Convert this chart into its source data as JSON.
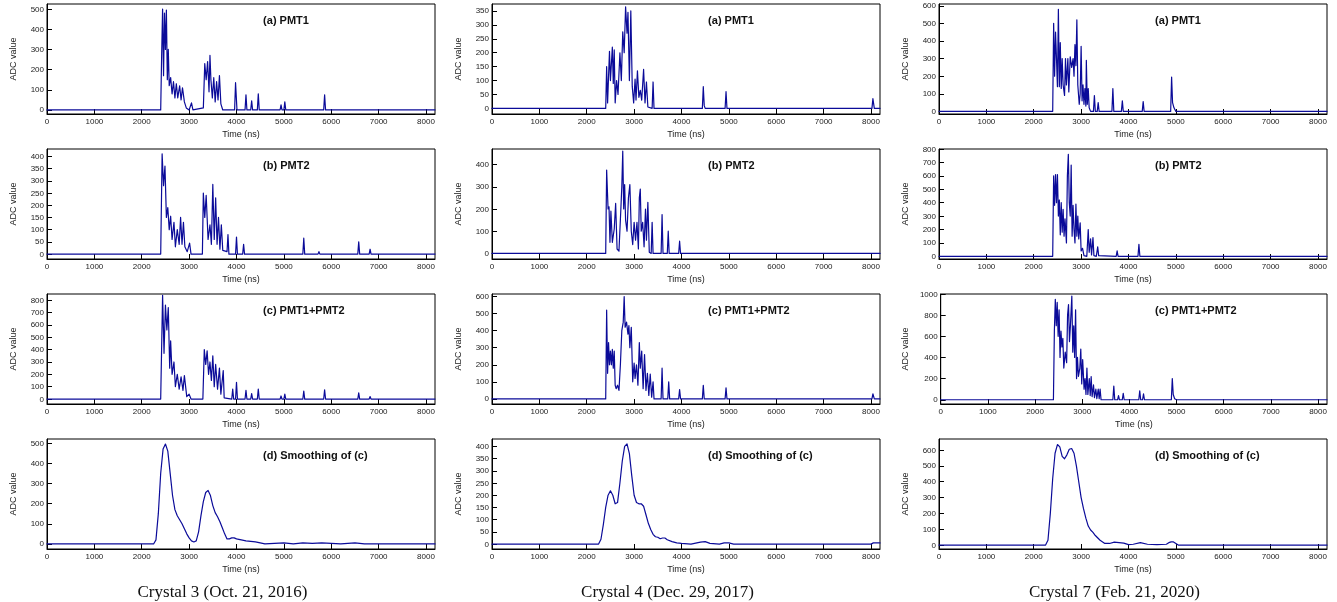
{
  "chart_data": [
    {
      "type": "line",
      "title": "(a) PMT1",
      "xlabel": "Time (ns)",
      "ylabel": "ADC value",
      "xlim": [
        0,
        8190
      ],
      "xticks": [
        0,
        1000,
        2000,
        3000,
        4000,
        5000,
        6000,
        7000,
        8000
      ],
      "ylim": [
        -20,
        525
      ],
      "yticks": [
        0,
        100,
        200,
        300,
        400,
        500
      ],
      "x": [
        0,
        2400,
        2420,
        2440,
        2460,
        2480,
        2500,
        2520,
        2540,
        2560,
        2580,
        2610,
        2640,
        2670,
        2700,
        2730,
        2760,
        2800,
        2830,
        2860,
        2900,
        2940,
        3000,
        3050,
        3080,
        3300,
        3330,
        3360,
        3390,
        3420,
        3440,
        3460,
        3490,
        3520,
        3550,
        3580,
        3610,
        3640,
        3670,
        3710,
        3960,
        3980,
        4010,
        4180,
        4200,
        4220,
        4300,
        4320,
        4340,
        4440,
        4460,
        4480,
        4920,
        4940,
        4960,
        5000,
        5020,
        5040,
        5840,
        5860,
        5880,
        8190
      ],
      "series": [
        {
          "color": "#0b0b99",
          "values": [
            0,
            0,
            270,
            500,
            170,
            480,
            300,
            495,
            150,
            300,
            120,
            160,
            80,
            140,
            60,
            130,
            60,
            120,
            50,
            110,
            40,
            10,
            0,
            35,
            0,
            10,
            230,
            150,
            240,
            90,
            270,
            150,
            60,
            160,
            40,
            140,
            50,
            170,
            30,
            0,
            0,
            135,
            0,
            0,
            75,
            0,
            0,
            45,
            0,
            0,
            80,
            0,
            0,
            25,
            0,
            0,
            40,
            0,
            0,
            75,
            0,
            0
          ]
        }
      ]
    },
    {
      "type": "line",
      "title": "(a) PMT1",
      "xlabel": "Time (ns)",
      "ylabel": "ADC value",
      "xlim": [
        0,
        8190
      ],
      "xticks": [
        0,
        1000,
        2000,
        3000,
        4000,
        5000,
        6000,
        7000,
        8000
      ],
      "ylim": [
        -20,
        375
      ],
      "yticks": [
        0,
        50,
        100,
        150,
        200,
        250,
        300,
        350
      ],
      "x": [
        0,
        2400,
        2420,
        2440,
        2480,
        2500,
        2540,
        2560,
        2580,
        2600,
        2630,
        2660,
        2700,
        2730,
        2760,
        2790,
        2820,
        2850,
        2870,
        2900,
        2930,
        2960,
        2990,
        3020,
        3040,
        3070,
        3100,
        3130,
        3160,
        3200,
        3230,
        3260,
        3290,
        3380,
        3400,
        3420,
        4440,
        4460,
        4480,
        4500,
        4920,
        4940,
        4960,
        8020,
        8040,
        8070,
        8190
      ],
      "series": [
        {
          "color": "#0b0b99",
          "values": [
            0,
            0,
            150,
            20,
            205,
            100,
            220,
            90,
            210,
            20,
            100,
            50,
            200,
            100,
            275,
            200,
            365,
            270,
            345,
            100,
            350,
            80,
            20,
            105,
            30,
            135,
            40,
            65,
            30,
            140,
            20,
            95,
            5,
            0,
            95,
            0,
            0,
            78,
            10,
            0,
            0,
            60,
            0,
            0,
            35,
            0,
            0
          ]
        }
      ]
    },
    {
      "type": "line",
      "title": "(a) PMT1",
      "xlabel": "Time (ns)",
      "ylabel": "ADC value",
      "xlim": [
        0,
        8190
      ],
      "xticks": [
        0,
        1000,
        2000,
        3000,
        4000,
        5000,
        6000,
        7000,
        8000
      ],
      "ylim": [
        -15,
        610
      ],
      "yticks": [
        0,
        100,
        200,
        300,
        400,
        500,
        600
      ],
      "x": [
        0,
        2400,
        2420,
        2440,
        2460,
        2480,
        2500,
        2520,
        2540,
        2560,
        2580,
        2600,
        2620,
        2650,
        2670,
        2690,
        2720,
        2740,
        2770,
        2800,
        2830,
        2850,
        2870,
        2890,
        2910,
        2930,
        2960,
        2980,
        3000,
        3020,
        3040,
        3060,
        3080,
        3100,
        3110,
        3130,
        3150,
        3170,
        3200,
        3260,
        3280,
        3300,
        3340,
        3360,
        3380,
        3650,
        3670,
        3690,
        3850,
        3870,
        3890,
        4290,
        4310,
        4330,
        4890,
        4910,
        4930,
        4960,
        5000,
        8190
      ],
      "series": [
        {
          "color": "#0b0b99",
          "values": [
            0,
            0,
            500,
            200,
            450,
            300,
            140,
            580,
            140,
            390,
            130,
            300,
            150,
            90,
            300,
            150,
            300,
            110,
            310,
            250,
            300,
            200,
            380,
            260,
            520,
            150,
            40,
            100,
            370,
            60,
            150,
            40,
            130,
            30,
            290,
            40,
            130,
            20,
            0,
            0,
            90,
            0,
            0,
            50,
            0,
            0,
            130,
            0,
            0,
            60,
            0,
            0,
            55,
            0,
            0,
            195,
            50,
            20,
            0,
            0
          ]
        }
      ]
    },
    {
      "type": "line",
      "title": "(b) PMT2",
      "xlabel": "Time (ns)",
      "ylabel": "ADC value",
      "xlim": [
        0,
        8190
      ],
      "xticks": [
        0,
        1000,
        2000,
        3000,
        4000,
        5000,
        6000,
        7000,
        8000
      ],
      "ylim": [
        -20,
        430
      ],
      "yticks": [
        0,
        50,
        100,
        150,
        200,
        250,
        300,
        350,
        400
      ],
      "x": [
        0,
        2400,
        2430,
        2460,
        2490,
        2520,
        2550,
        2580,
        2610,
        2640,
        2680,
        2710,
        2750,
        2790,
        2820,
        2850,
        2880,
        2910,
        2960,
        3010,
        3040,
        3280,
        3300,
        3330,
        3360,
        3400,
        3440,
        3470,
        3500,
        3530,
        3560,
        3590,
        3620,
        3650,
        3680,
        3710,
        3800,
        3820,
        3840,
        3980,
        4000,
        4020,
        4130,
        4150,
        4170,
        5400,
        5420,
        5440,
        5720,
        5740,
        5760,
        6560,
        6580,
        6600,
        6800,
        6820,
        6840,
        8190
      ],
      "series": [
        {
          "color": "#0b0b99",
          "values": [
            0,
            0,
            410,
            280,
            360,
            150,
            190,
            100,
            155,
            60,
            130,
            30,
            100,
            40,
            150,
            40,
            130,
            30,
            10,
            45,
            0,
            0,
            250,
            150,
            240,
            60,
            120,
            40,
            285,
            60,
            230,
            40,
            150,
            20,
            120,
            15,
            10,
            80,
            0,
            0,
            70,
            0,
            0,
            40,
            0,
            0,
            65,
            0,
            0,
            10,
            0,
            0,
            50,
            0,
            0,
            20,
            0,
            0
          ]
        }
      ]
    },
    {
      "type": "line",
      "title": "(b) PMT2",
      "xlabel": "Time (ns)",
      "ylabel": "ADC value",
      "xlim": [
        0,
        8190
      ],
      "xticks": [
        0,
        1000,
        2000,
        3000,
        4000,
        5000,
        6000,
        7000,
        8000
      ],
      "ylim": [
        -25,
        470
      ],
      "yticks": [
        0,
        100,
        200,
        300,
        400
      ],
      "x": [
        0,
        2400,
        2420,
        2450,
        2470,
        2490,
        2510,
        2540,
        2580,
        2610,
        2640,
        2680,
        2720,
        2740,
        2760,
        2780,
        2800,
        2820,
        2850,
        2880,
        2910,
        2940,
        2970,
        3000,
        3030,
        3060,
        3090,
        3110,
        3130,
        3150,
        3180,
        3210,
        3240,
        3260,
        3290,
        3320,
        3360,
        3380,
        3400,
        3570,
        3590,
        3610,
        3700,
        3720,
        3740,
        3940,
        3960,
        3980,
        8190
      ],
      "series": [
        {
          "color": "#0b0b99",
          "values": [
            0,
            0,
            375,
            200,
            210,
            50,
            190,
            50,
            110,
            225,
            20,
            10,
            200,
            300,
            460,
            200,
            310,
            150,
            100,
            250,
            310,
            100,
            40,
            140,
            60,
            140,
            20,
            250,
            290,
            100,
            140,
            30,
            200,
            60,
            230,
            5,
            0,
            140,
            0,
            0,
            175,
            0,
            0,
            100,
            0,
            0,
            55,
            0,
            0
          ]
        }
      ]
    },
    {
      "type": "line",
      "title": "(b) PMT2",
      "xlabel": "Time (ns)",
      "ylabel": "ADC value",
      "xlim": [
        0,
        8190
      ],
      "xticks": [
        0,
        1000,
        2000,
        3000,
        4000,
        5000,
        6000,
        7000,
        8000
      ],
      "ylim": [
        -20,
        800
      ],
      "yticks": [
        0,
        100,
        200,
        300,
        400,
        500,
        600,
        700,
        800
      ],
      "x": [
        0,
        2400,
        2420,
        2440,
        2460,
        2480,
        2500,
        2520,
        2540,
        2560,
        2580,
        2600,
        2620,
        2640,
        2660,
        2690,
        2710,
        2730,
        2750,
        2770,
        2790,
        2810,
        2830,
        2850,
        2870,
        2890,
        2910,
        2930,
        2950,
        2980,
        3000,
        3030,
        3060,
        3120,
        3150,
        3170,
        3200,
        3220,
        3250,
        3270,
        3320,
        3350,
        3370,
        3740,
        3760,
        3780,
        4200,
        4220,
        4240,
        8190
      ],
      "series": [
        {
          "color": "#0b0b99",
          "values": [
            0,
            0,
            600,
            380,
            610,
            400,
            610,
            300,
            420,
            160,
            400,
            180,
            350,
            150,
            280,
            100,
            600,
            760,
            400,
            300,
            680,
            150,
            380,
            200,
            100,
            390,
            150,
            300,
            130,
            250,
            40,
            60,
            5,
            0,
            200,
            30,
            130,
            10,
            140,
            5,
            0,
            70,
            5,
            0,
            40,
            0,
            0,
            90,
            0,
            0
          ]
        }
      ]
    },
    {
      "type": "line",
      "title": "(c) PMT1+PMT2",
      "xlabel": "Time (ns)",
      "ylabel": "ADC value",
      "xlim": [
        0,
        8190
      ],
      "xticks": [
        0,
        1000,
        2000,
        3000,
        4000,
        5000,
        6000,
        7000,
        8000
      ],
      "ylim": [
        -40,
        850
      ],
      "yticks": [
        0,
        100,
        200,
        300,
        400,
        500,
        600,
        700,
        800
      ],
      "x": [
        0,
        2400,
        2440,
        2470,
        2500,
        2530,
        2560,
        2590,
        2610,
        2640,
        2680,
        2710,
        2750,
        2790,
        2830,
        2870,
        2900,
        2950,
        3000,
        3040,
        3290,
        3320,
        3350,
        3380,
        3410,
        3440,
        3470,
        3500,
        3530,
        3560,
        3600,
        3640,
        3670,
        3720,
        3740,
        3900,
        3920,
        3940,
        3980,
        4000,
        4020,
        4180,
        4200,
        4220,
        4300,
        4320,
        4340,
        4440,
        4460,
        4480,
        4920,
        4940,
        4960,
        5000,
        5020,
        5040,
        5400,
        5420,
        5440,
        5840,
        5860,
        5880,
        6560,
        6580,
        6600,
        6800,
        6820,
        6840,
        8190
      ],
      "series": [
        {
          "color": "#0b0b99",
          "values": [
            0,
            0,
            840,
            370,
            760,
            560,
            740,
            250,
            470,
            200,
            300,
            100,
            200,
            80,
            180,
            70,
            190,
            20,
            40,
            0,
            0,
            400,
            280,
            390,
            200,
            300,
            150,
            350,
            100,
            280,
            80,
            250,
            40,
            230,
            10,
            0,
            80,
            0,
            0,
            135,
            0,
            0,
            70,
            0,
            0,
            45,
            0,
            0,
            80,
            0,
            0,
            25,
            0,
            0,
            40,
            0,
            0,
            65,
            0,
            0,
            75,
            0,
            0,
            50,
            0,
            0,
            20,
            0,
            0
          ]
        }
      ]
    },
    {
      "type": "line",
      "title": "(c) PMT1+PMT2",
      "xlabel": "Time (ns)",
      "ylabel": "ADC value",
      "xlim": [
        0,
        8190
      ],
      "xticks": [
        0,
        1000,
        2000,
        3000,
        4000,
        5000,
        6000,
        7000,
        8000
      ],
      "ylim": [
        -30,
        615
      ],
      "yticks": [
        0,
        100,
        200,
        300,
        400,
        500,
        600
      ],
      "x": [
        0,
        2400,
        2420,
        2440,
        2460,
        2480,
        2500,
        2520,
        2540,
        2560,
        2580,
        2600,
        2620,
        2650,
        2680,
        2710,
        2740,
        2770,
        2790,
        2810,
        2840,
        2870,
        2890,
        2910,
        2940,
        2970,
        3000,
        3020,
        3050,
        3080,
        3110,
        3130,
        3160,
        3190,
        3220,
        3250,
        3280,
        3310,
        3340,
        3370,
        3400,
        3420,
        3570,
        3590,
        3610,
        3710,
        3730,
        3750,
        3940,
        3960,
        3980,
        4440,
        4460,
        4480,
        4920,
        4940,
        4960,
        8020,
        8040,
        8070,
        8190
      ],
      "series": [
        {
          "color": "#0b0b99",
          "values": [
            0,
            0,
            520,
            150,
            330,
            200,
            280,
            200,
            290,
            180,
            280,
            80,
            60,
            80,
            50,
            200,
            400,
            450,
            600,
            420,
            450,
            380,
            430,
            300,
            420,
            100,
            210,
            120,
            200,
            80,
            330,
            180,
            280,
            60,
            260,
            50,
            150,
            20,
            145,
            10,
            100,
            0,
            0,
            180,
            0,
            0,
            100,
            0,
            0,
            55,
            0,
            0,
            80,
            0,
            0,
            65,
            0,
            0,
            30,
            0,
            0
          ]
        }
      ]
    },
    {
      "type": "line",
      "title": "(c) PMT1+PMT2",
      "xlabel": "Time (ns)",
      "ylabel": "ADC value",
      "xlim": [
        0,
        8190
      ],
      "xticks": [
        0,
        1000,
        2000,
        3000,
        4000,
        5000,
        6000,
        7000,
        8000
      ],
      "ylim": [
        -40,
        1000
      ],
      "yticks": [
        0,
        200,
        400,
        600,
        800,
        1000
      ],
      "x": [
        0,
        2390,
        2410,
        2430,
        2450,
        2470,
        2490,
        2510,
        2530,
        2550,
        2570,
        2590,
        2610,
        2640,
        2670,
        2690,
        2710,
        2730,
        2750,
        2780,
        2800,
        2820,
        2840,
        2860,
        2880,
        2900,
        2920,
        2950,
        2970,
        2990,
        3010,
        3040,
        3060,
        3080,
        3100,
        3120,
        3150,
        3170,
        3190,
        3210,
        3240,
        3260,
        3290,
        3310,
        3340,
        3360,
        3380,
        3400,
        3650,
        3670,
        3690,
        3750,
        3770,
        3790,
        3850,
        3870,
        3890,
        4200,
        4220,
        4240,
        4280,
        4300,
        4320,
        4890,
        4910,
        4930,
        4960,
        5000,
        8190
      ],
      "series": [
        {
          "color": "#0b0b99",
          "values": [
            0,
            0,
            650,
            950,
            700,
            920,
            600,
            850,
            400,
            650,
            500,
            580,
            300,
            450,
            350,
            800,
            900,
            550,
            700,
            980,
            450,
            700,
            400,
            850,
            200,
            400,
            220,
            300,
            480,
            150,
            380,
            100,
            200,
            50,
            300,
            50,
            200,
            40,
            220,
            30,
            140,
            20,
            100,
            10,
            100,
            10,
            100,
            0,
            0,
            130,
            0,
            0,
            40,
            0,
            0,
            60,
            0,
            0,
            85,
            0,
            0,
            55,
            0,
            0,
            200,
            50,
            10,
            0,
            0
          ]
        }
      ]
    },
    {
      "type": "line",
      "title": "(d) Smoothing of (c)",
      "xlabel": "Time (ns)",
      "ylabel": "ADC value",
      "annotations": [
        "Crystal 3 (Oct. 21, 2016)"
      ],
      "xlim": [
        0,
        8190
      ],
      "xticks": [
        0,
        1000,
        2000,
        3000,
        4000,
        5000,
        6000,
        7000,
        8000
      ],
      "ylim": [
        -25,
        520
      ],
      "yticks": [
        0,
        100,
        200,
        300,
        400,
        500
      ],
      "x": [
        0,
        2250,
        2300,
        2350,
        2400,
        2450,
        2500,
        2550,
        2600,
        2650,
        2700,
        2750,
        2800,
        2850,
        2900,
        2950,
        3000,
        3050,
        3100,
        3150,
        3200,
        3250,
        3300,
        3350,
        3400,
        3450,
        3500,
        3550,
        3600,
        3650,
        3700,
        3750,
        3800,
        3850,
        3900,
        3950,
        4000,
        4200,
        4400,
        4600,
        5000,
        5200,
        5400,
        5600,
        5800,
        6000,
        6200,
        6500,
        6700,
        8190
      ],
      "series": [
        {
          "color": "#0b0b99",
          "values": [
            0,
            0,
            20,
            150,
            350,
            470,
            495,
            460,
            350,
            240,
            170,
            140,
            120,
            100,
            75,
            50,
            30,
            15,
            10,
            15,
            60,
            140,
            210,
            255,
            265,
            240,
            190,
            155,
            135,
            110,
            80,
            50,
            25,
            25,
            30,
            30,
            25,
            15,
            10,
            0,
            5,
            0,
            5,
            3,
            5,
            3,
            0,
            5,
            0,
            0
          ]
        }
      ]
    },
    {
      "type": "line",
      "title": "(d) Smoothing of (c)",
      "xlabel": "Time (ns)",
      "ylabel": "ADC value",
      "annotations": [
        "Crystal 4 (Dec. 29, 2017)"
      ],
      "xlim": [
        0,
        8190
      ],
      "xticks": [
        0,
        1000,
        2000,
        3000,
        4000,
        5000,
        6000,
        7000,
        8000
      ],
      "ylim": [
        -20,
        430
      ],
      "yticks": [
        0,
        50,
        100,
        150,
        200,
        250,
        300,
        350,
        400
      ],
      "x": [
        0,
        2250,
        2300,
        2350,
        2400,
        2450,
        2500,
        2550,
        2600,
        2650,
        2700,
        2750,
        2800,
        2850,
        2900,
        2950,
        3000,
        3050,
        3100,
        3150,
        3200,
        3250,
        3300,
        3350,
        3400,
        3450,
        3500,
        3550,
        3600,
        3650,
        3700,
        3800,
        3900,
        4000,
        4200,
        4400,
        4500,
        4600,
        4800,
        4900,
        5000,
        5100,
        8000,
        8050,
        8190
      ],
      "series": [
        {
          "color": "#0b0b99",
          "values": [
            0,
            0,
            20,
            80,
            150,
            200,
            218,
            200,
            165,
            170,
            250,
            340,
            400,
            410,
            370,
            280,
            200,
            170,
            165,
            165,
            155,
            120,
            85,
            60,
            40,
            30,
            28,
            22,
            25,
            25,
            18,
            10,
            5,
            3,
            0,
            8,
            10,
            3,
            0,
            5,
            5,
            0,
            0,
            5,
            5
          ]
        }
      ]
    },
    {
      "type": "line",
      "title": "(d) Smoothing of (c)",
      "xlabel": "Time (ns)",
      "ylabel": "ADC value",
      "annotations": [
        "Crystal 7 (Feb. 21, 2020)"
      ],
      "xlim": [
        0,
        8190
      ],
      "xticks": [
        0,
        1000,
        2000,
        3000,
        4000,
        5000,
        6000,
        7000,
        8000
      ],
      "ylim": [
        -25,
        670
      ],
      "yticks": [
        0,
        100,
        200,
        300,
        400,
        500,
        600
      ],
      "x": [
        0,
        2250,
        2300,
        2350,
        2400,
        2450,
        2500,
        2550,
        2600,
        2650,
        2700,
        2750,
        2800,
        2850,
        2900,
        2950,
        3000,
        3050,
        3100,
        3150,
        3200,
        3250,
        3300,
        3400,
        3500,
        3600,
        3700,
        3800,
        3900,
        4000,
        4100,
        4250,
        4400,
        4600,
        4800,
        4850,
        4900,
        4950,
        5000,
        5050,
        8190
      ],
      "series": [
        {
          "color": "#0b0b99",
          "values": [
            0,
            0,
            30,
            200,
            420,
            580,
            635,
            620,
            560,
            545,
            570,
            605,
            610,
            580,
            500,
            400,
            300,
            230,
            170,
            120,
            95,
            80,
            60,
            30,
            10,
            10,
            18,
            15,
            12,
            3,
            5,
            15,
            5,
            3,
            5,
            15,
            20,
            20,
            10,
            0,
            0
          ]
        }
      ]
    }
  ]
}
